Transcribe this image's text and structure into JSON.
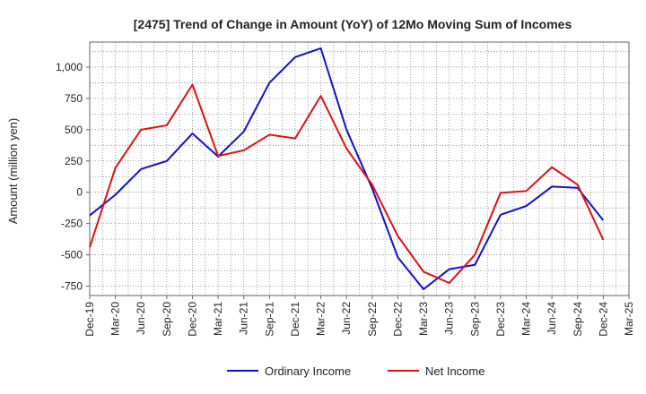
{
  "chart_data": {
    "type": "line",
    "title": "[2475]  Trend of Change in Amount (YoY) of 12Mo Moving Sum of Incomes",
    "xlabel": "",
    "ylabel": "Amount (million yen)",
    "categories": [
      "Dec-19",
      "Mar-20",
      "Jun-20",
      "Sep-20",
      "Dec-20",
      "Mar-21",
      "Jun-21",
      "Sep-21",
      "Dec-21",
      "Mar-22",
      "Jun-22",
      "Sep-22",
      "Dec-22",
      "Mar-23",
      "Jun-23",
      "Sep-23",
      "Dec-23",
      "Mar-24",
      "Jun-24",
      "Sep-24",
      "Dec-24",
      "Mar-25"
    ],
    "ylim": [
      -825,
      1200
    ],
    "yticks": [
      -750,
      -500,
      -250,
      0,
      250,
      500,
      750,
      1000
    ],
    "ytick_labels": [
      "-750",
      "-500",
      "-250",
      "0",
      "250",
      "500",
      "750",
      "1,000"
    ],
    "grid": true,
    "legend_position": "bottom-center",
    "series": [
      {
        "name": "Ordinary Income",
        "color": "#1010cc",
        "values": [
          -185,
          -20,
          185,
          250,
          470,
          285,
          485,
          875,
          1080,
          1150,
          500,
          30,
          -520,
          -775,
          -615,
          -580,
          -180,
          -110,
          45,
          35,
          -225,
          null
        ]
      },
      {
        "name": "Net Income",
        "color": "#e01010",
        "values": [
          -440,
          195,
          500,
          535,
          860,
          290,
          335,
          460,
          430,
          770,
          350,
          60,
          -350,
          -635,
          -725,
          -500,
          -5,
          10,
          200,
          60,
          -380,
          null
        ]
      }
    ]
  }
}
